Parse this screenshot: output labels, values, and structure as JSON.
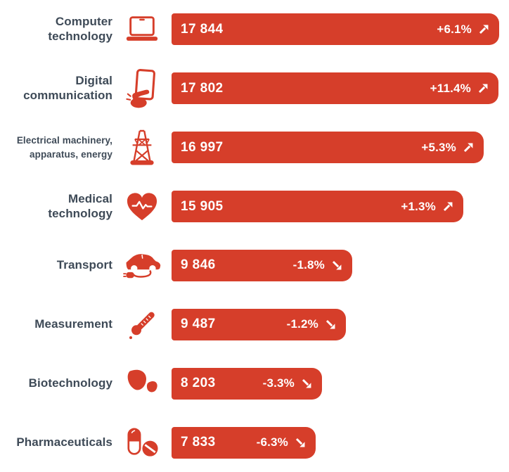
{
  "chart_data": {
    "type": "bar",
    "orientation": "horizontal",
    "title": "",
    "xlabel": "",
    "ylabel": "",
    "legend": "none",
    "grid": false,
    "bar_color": "#d63e2a",
    "label_color": "#3e4a57",
    "value_text_color": "#ffffff",
    "max_value": 17844,
    "categories": [
      "Computer technology",
      "Digital communication",
      "Electrical machinery, apparatus, energy",
      "Medical technology",
      "Transport",
      "Measurement",
      "Biotechnology",
      "Pharmaceuticals"
    ],
    "values": [
      17844,
      17802,
      16997,
      15905,
      9846,
      9487,
      8203,
      7833
    ],
    "changes": [
      "+6.1%",
      "+11.4%",
      "+5.3%",
      "+1.3%",
      "-1.8%",
      "-1.2%",
      "-3.3%",
      "-6.3%"
    ],
    "rows": [
      {
        "label": "Computer\ntechnology",
        "icon": "laptop-icon",
        "value": 17844,
        "value_display": "17 844",
        "change": "+6.1%",
        "trend": "up"
      },
      {
        "label": "Digital\ncommunication",
        "icon": "smartphone-touch-icon",
        "value": 17802,
        "value_display": "17 802",
        "change": "+11.4%",
        "trend": "up"
      },
      {
        "label": "Electrical machinery,\napparatus, energy",
        "icon": "power-pylon-icon",
        "value": 16997,
        "value_display": "16 997",
        "change": "+5.3%",
        "trend": "up"
      },
      {
        "label": "Medical\ntechnology",
        "icon": "heart-pulse-icon",
        "value": 15905,
        "value_display": "15 905",
        "change": "+1.3%",
        "trend": "up"
      },
      {
        "label": "Transport",
        "icon": "electric-car-icon",
        "value": 9846,
        "value_display": "9 846",
        "change": "-1.8%",
        "trend": "down"
      },
      {
        "label": "Measurement",
        "icon": "thermometer-icon",
        "value": 9487,
        "value_display": "9 487",
        "change": "-1.2%",
        "trend": "down"
      },
      {
        "label": "Biotechnology",
        "icon": "leaves-icon",
        "value": 8203,
        "value_display": "8 203",
        "change": "-3.3%",
        "trend": "down"
      },
      {
        "label": "Pharmaceuticals",
        "icon": "pills-icon",
        "value": 7833,
        "value_display": "7 833",
        "change": "-6.3%",
        "trend": "down"
      }
    ]
  }
}
